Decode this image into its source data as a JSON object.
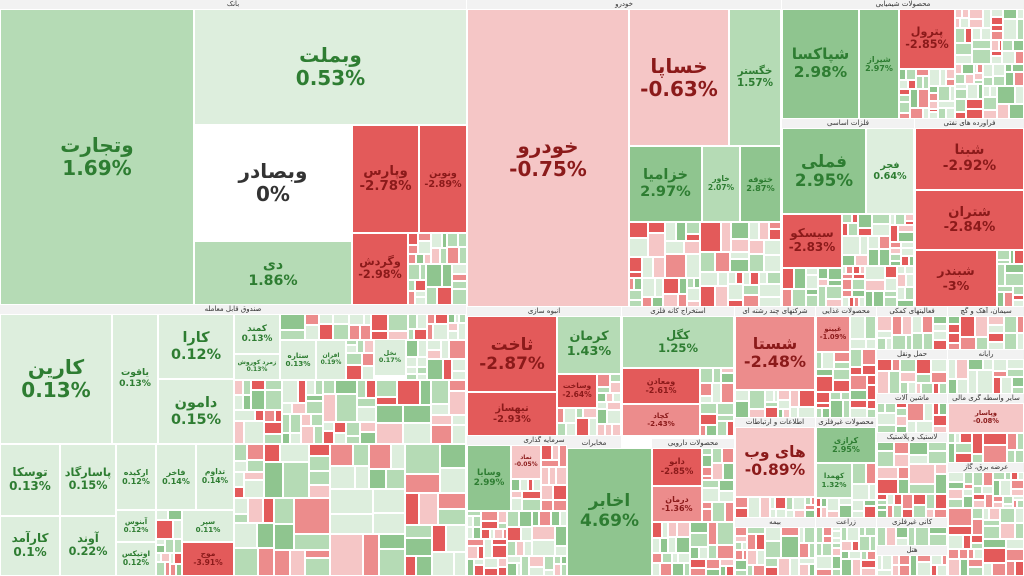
{
  "chart_data": {
    "type": "treemap",
    "colors": {
      "strong_up": "#8fc58f",
      "up": "#b5dbb5",
      "weak_up": "#ddeedd",
      "flat": "#ffffff",
      "weak_down": "#f5c6c6",
      "down": "#ec8c8c",
      "strong_down": "#e35a5a",
      "text_up": "#2e7d32",
      "text_down": "#8b1a1a",
      "text_flat": "#333333"
    },
    "sectors": [
      {
        "name": "بانک"
      },
      {
        "name": "خودرو"
      },
      {
        "name": "محصولات شیمیایی"
      },
      {
        "name": "فلزات اساسی"
      },
      {
        "name": "فراورده های نفتی"
      },
      {
        "name": "صندوق قابل معامله"
      },
      {
        "name": "انبوه سازی"
      },
      {
        "name": "استخراج کانه فلزی"
      },
      {
        "name": "شرکتهای چند رشته ای"
      },
      {
        "name": "محصولات غذایی"
      },
      {
        "name": "فعالیتهای کمکی"
      },
      {
        "name": "سیمان، آهک و گچ"
      },
      {
        "name": "حمل ونقل"
      },
      {
        "name": "رایانه"
      },
      {
        "name": "ماشین آلات"
      },
      {
        "name": "سایر واسطه گری مالی"
      },
      {
        "name": "سرمایه گذاری"
      },
      {
        "name": "مخابرات"
      },
      {
        "name": "محصولات دارویی"
      },
      {
        "name": "اطلاعات و ارتباطات"
      },
      {
        "name": "محصولات غیرفلزی"
      },
      {
        "name": "لاستیک و پلاستیک"
      },
      {
        "name": "عرضه برق، گاز"
      },
      {
        "name": "بیمه"
      },
      {
        "name": "زراعت"
      },
      {
        "name": "کانی غیرفلزی"
      },
      {
        "name": "هتل"
      }
    ],
    "tiles": [
      {
        "symbol": "وتجارت",
        "value": 1.69,
        "label": "1.69%"
      },
      {
        "symbol": "وبملت",
        "value": 0.53,
        "label": "0.53%"
      },
      {
        "symbol": "وبصادر",
        "value": 0,
        "label": "0%"
      },
      {
        "symbol": "دی",
        "value": 1.86,
        "label": "1.86%"
      },
      {
        "symbol": "وپارس",
        "value": -2.78,
        "label": "-2.78%"
      },
      {
        "symbol": "ونوین",
        "value": -2.89,
        "label": "-2.89%"
      },
      {
        "symbol": "وگردش",
        "value": -2.98,
        "label": "-2.98%"
      },
      {
        "symbol": "خودرو",
        "value": -0.75,
        "label": "-0.75%"
      },
      {
        "symbol": "خساپا",
        "value": -0.63,
        "label": "-0.63%"
      },
      {
        "symbol": "خگستر",
        "value": 1.57,
        "label": "1.57%"
      },
      {
        "symbol": "خزامیا",
        "value": 2.97,
        "label": "2.97%"
      },
      {
        "symbol": "خاور",
        "value": 2.07,
        "label": "2.07%"
      },
      {
        "symbol": "ختوقه",
        "value": 2.87,
        "label": "2.87%"
      },
      {
        "symbol": "شپاکسا",
        "value": 2.98,
        "label": "2.98%"
      },
      {
        "symbol": "شیراز",
        "value": 2.97,
        "label": "2.97%"
      },
      {
        "symbol": "پترول",
        "value": -2.85,
        "label": "-2.85%"
      },
      {
        "symbol": "فملی",
        "value": 2.95,
        "label": "2.95%"
      },
      {
        "symbol": "فجر",
        "value": 0.64,
        "label": "0.64%"
      },
      {
        "symbol": "سیسکو",
        "value": -2.83,
        "label": "-2.83%"
      },
      {
        "symbol": "شبنا",
        "value": -2.92,
        "label": "-2.92%"
      },
      {
        "symbol": "شتران",
        "value": -2.84,
        "label": "-2.84%"
      },
      {
        "symbol": "شبندر",
        "value": -3,
        "label": "-3%"
      },
      {
        "symbol": "کارین",
        "value": 0.13,
        "label": "0.13%"
      },
      {
        "symbol": "کارا",
        "value": 0.12,
        "label": "0.12%"
      },
      {
        "symbol": "یاقوت",
        "value": 0.13,
        "label": "0.13%"
      },
      {
        "symbol": "دامون",
        "value": 0.15,
        "label": "0.15%"
      },
      {
        "symbol": "توسکا",
        "value": 0.13,
        "label": "0.13%"
      },
      {
        "symbol": "پاسارگاد",
        "value": 0.15,
        "label": "0.15%"
      },
      {
        "symbol": "ارکیده",
        "value": 0.12,
        "label": "0.12%"
      },
      {
        "symbol": "فاخر",
        "value": 0.14,
        "label": "0.14%"
      },
      {
        "symbol": "تداوم",
        "value": 0.14,
        "label": "0.14%"
      },
      {
        "symbol": "کارآمد",
        "value": 0.1,
        "label": "0.1%"
      },
      {
        "symbol": "آوند",
        "value": 0.22,
        "label": "0.22%"
      },
      {
        "symbol": "آبنوس",
        "value": 0.12,
        "label": "0.12%"
      },
      {
        "symbol": "اوتیکس",
        "value": 0.12,
        "label": "0.12%"
      },
      {
        "symbol": "سپر",
        "value": 0.11,
        "label": "0.11%"
      },
      {
        "symbol": "موج",
        "value": -3.91,
        "label": "-3.91%"
      },
      {
        "symbol": "کمند",
        "value": 0.13,
        "label": "0.13%"
      },
      {
        "symbol": "زمرد کوروش",
        "value": 0.13,
        "label": "0.13%"
      },
      {
        "symbol": "ستاره",
        "value": 0.13,
        "label": "0.13%"
      },
      {
        "symbol": "افران",
        "value": 0.19,
        "label": "0.19%"
      },
      {
        "symbol": "نخل",
        "value": 0.17,
        "label": "0.17%"
      },
      {
        "symbol": "ثاخت",
        "value": -2.87,
        "label": "-2.87%"
      },
      {
        "symbol": "کرمان",
        "value": 1.43,
        "label": "1.43%"
      },
      {
        "symbol": "تیهساز",
        "value": -2.93,
        "label": "-2.93%"
      },
      {
        "symbol": "وساخت",
        "value": -2.64,
        "label": "-2.64%"
      },
      {
        "symbol": "کگل",
        "value": 1.25,
        "label": "1.25%"
      },
      {
        "symbol": "ومعادن",
        "value": -2.61,
        "label": "-2.61%"
      },
      {
        "symbol": "کچاد",
        "value": -2.43,
        "label": "-2.43%"
      },
      {
        "symbol": "شستا",
        "value": -2.48,
        "label": "-2.48%"
      },
      {
        "symbol": "غپینو",
        "value": -1.09,
        "label": "-1.09%"
      },
      {
        "symbol": "های وب",
        "value": -0.89,
        "label": "-0.89%"
      },
      {
        "symbol": "کرازی",
        "value": 2.95,
        "label": "2.95%"
      },
      {
        "symbol": "کهمدا",
        "value": 1.32,
        "label": "1.32%"
      },
      {
        "symbol": "اخابر",
        "value": 4.69,
        "label": "4.69%"
      },
      {
        "symbol": "وسایا",
        "value": 2.99,
        "label": "2.99%"
      },
      {
        "symbol": "نماد",
        "value": -0.05,
        "label": "-0.05%"
      },
      {
        "symbol": "دابو",
        "value": -2.85,
        "label": "-2.85%"
      },
      {
        "symbol": "درمان",
        "value": -1.36,
        "label": "-1.36%"
      },
      {
        "symbol": "وپاسار",
        "value": -0.08,
        "label": "-0.08%"
      }
    ]
  }
}
